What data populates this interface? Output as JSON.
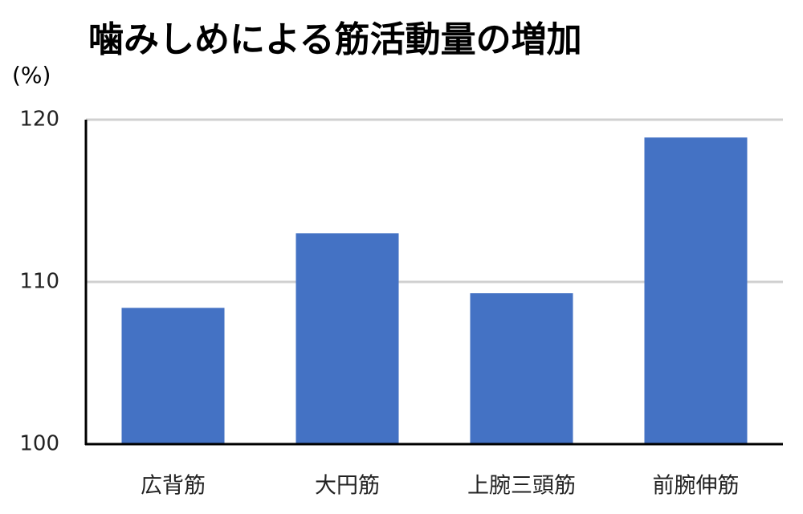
{
  "chart_data": {
    "type": "bar",
    "title": "噛みしめによる筋活動量の増加",
    "y_label": "(%)",
    "categories": [
      "広背筋",
      "大円筋",
      "上腕三頭筋",
      "前腕伸筋"
    ],
    "values": [
      108.4,
      113.0,
      109.3,
      118.9
    ],
    "color": "#4472c4",
    "ylim": [
      100,
      120
    ],
    "yticks": [
      100,
      110,
      120
    ],
    "grid": true
  }
}
